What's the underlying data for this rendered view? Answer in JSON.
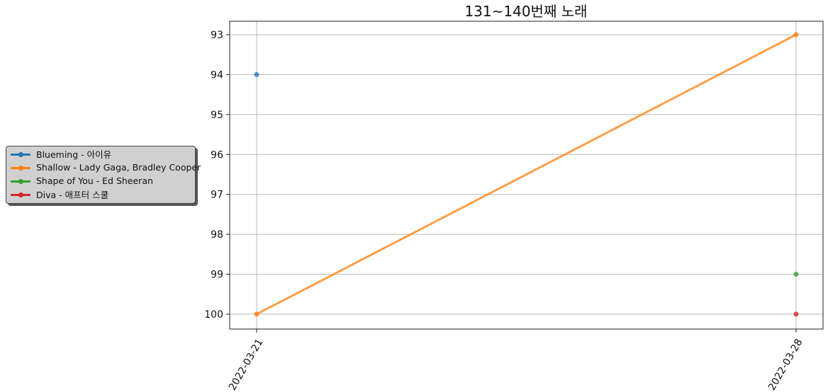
{
  "chart_data": {
    "type": "line",
    "title": "131~140번째 노래",
    "xlabel": "",
    "ylabel": "",
    "x": [
      "2022-03-21",
      "2022-03-28"
    ],
    "y_inverted": true,
    "ylim": [
      100,
      93
    ],
    "yticks": [
      93,
      94,
      95,
      96,
      97,
      98,
      99,
      100
    ],
    "grid": true,
    "legend_position": "left",
    "series": [
      {
        "name": "Blueming - 아이유",
        "color": "#1f77b4",
        "values": [
          94,
          null
        ]
      },
      {
        "name": "Shallow - Lady Gaga, Bradley Cooper",
        "color": "#ff7f0e",
        "values": [
          100,
          93
        ]
      },
      {
        "name": "Shape of You - Ed Sheeran",
        "color": "#2ca02c",
        "values": [
          null,
          99
        ]
      },
      {
        "name": "Diva - 애프터 스쿨",
        "color": "#d62728",
        "values": [
          null,
          100
        ]
      }
    ]
  }
}
